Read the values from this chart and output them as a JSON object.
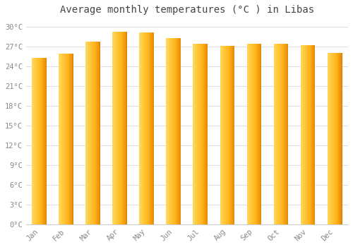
{
  "title": "Average monthly temperatures (°C ) in Libas",
  "months": [
    "Jan",
    "Feb",
    "Mar",
    "Apr",
    "May",
    "Jun",
    "Jul",
    "Aug",
    "Sep",
    "Oct",
    "Nov",
    "Dec"
  ],
  "temperatures": [
    25.3,
    26.0,
    27.8,
    29.3,
    29.2,
    28.3,
    27.5,
    27.1,
    27.5,
    27.5,
    27.2,
    26.1
  ],
  "bar_color_light": "#FFD060",
  "bar_color_mid": "#FFA800",
  "bar_color_dark": "#E08000",
  "background_color": "#FFFFFF",
  "grid_color": "#E0E0E0",
  "ytick_labels": [
    "0°C",
    "3°C",
    "6°C",
    "9°C",
    "12°C",
    "15°C",
    "18°C",
    "21°C",
    "24°C",
    "27°C",
    "30°C"
  ],
  "ytick_values": [
    0,
    3,
    6,
    9,
    12,
    15,
    18,
    21,
    24,
    27,
    30
  ],
  "ylim": [
    0,
    31
  ],
  "title_fontsize": 10,
  "tick_fontsize": 7.5,
  "bar_width": 0.55
}
